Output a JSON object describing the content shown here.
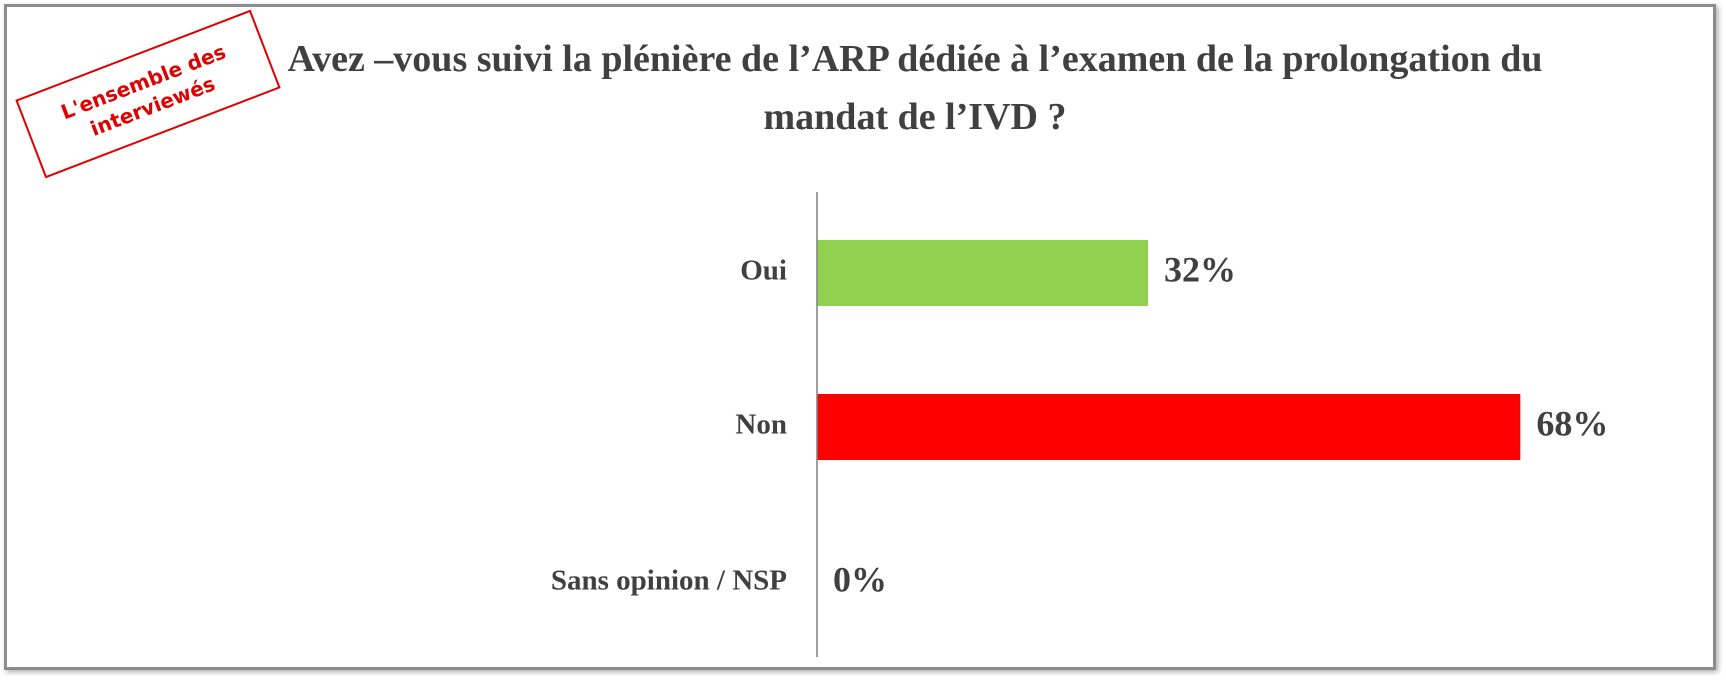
{
  "chart_data": {
    "type": "bar",
    "orientation": "horizontal",
    "title": "Avez –vous suivi la plénière de l’ARP dédiée à l’examen de la prolongation du mandat de l’IVD ?",
    "annotation": "L'ensemble des interviewés",
    "categories": [
      "Oui",
      "Non",
      "Sans opinion / NSP"
    ],
    "values": [
      32,
      68,
      0
    ],
    "value_labels": [
      "32%",
      "68%",
      "0%"
    ],
    "colors": [
      "#92d050",
      "#ff0000",
      "#92d050"
    ],
    "xlim": [
      0,
      70
    ]
  }
}
